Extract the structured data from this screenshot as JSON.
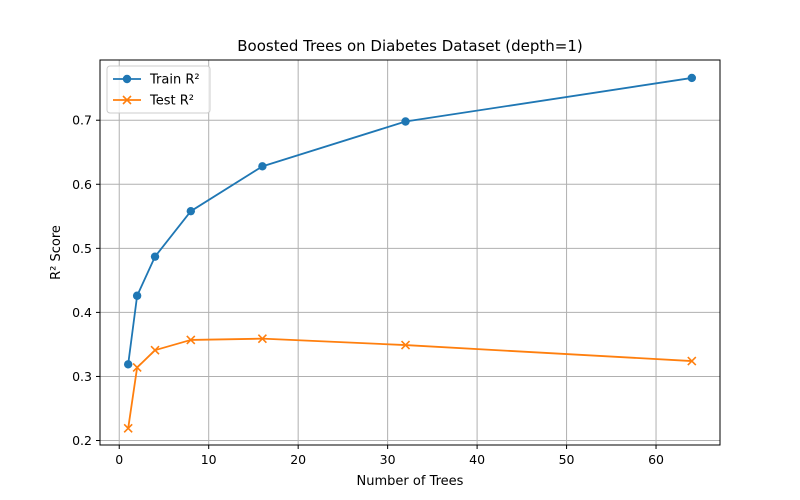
{
  "chart_data": {
    "type": "line",
    "title": "Boosted Trees on Diabetes Dataset (depth=1)",
    "xlabel": "Number of Trees",
    "ylabel": "R² Score",
    "xlim": [
      -2.15,
      67.15
    ],
    "ylim": [
      0.193,
      0.794
    ],
    "xticks": [
      0,
      10,
      20,
      30,
      40,
      50,
      60
    ],
    "yticks": [
      0.2,
      0.3,
      0.4,
      0.5,
      0.6,
      0.7
    ],
    "ytick_labels": [
      "0.2",
      "0.3",
      "0.4",
      "0.5",
      "0.6",
      "0.7"
    ],
    "grid": true,
    "legend_position": "top-left",
    "x": [
      1,
      2,
      4,
      8,
      16,
      32,
      64
    ],
    "series": [
      {
        "name": "Train R²",
        "color": "#1f77b4",
        "marker": "circle",
        "values": [
          0.319,
          0.426,
          0.487,
          0.558,
          0.628,
          0.698,
          0.766
        ]
      },
      {
        "name": "Test R²",
        "color": "#ff7f0e",
        "marker": "x",
        "values": [
          0.219,
          0.314,
          0.341,
          0.357,
          0.359,
          0.349,
          0.324
        ]
      }
    ]
  }
}
